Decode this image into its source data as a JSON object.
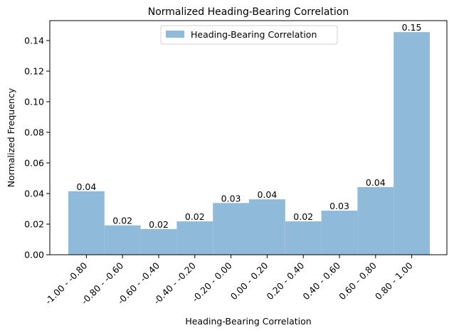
{
  "chart_data": {
    "type": "bar",
    "title": "Normalized Heading-Bearing Correlation",
    "xlabel": "Heading-Bearing Correlation",
    "ylabel": "Normalized Frequency",
    "categories": [
      "-1.00 - -0.80",
      "-0.80 - -0.60",
      "-0.60 - -0.40",
      "-0.40 - -0.20",
      "-0.20 - 0.00",
      "0.00 - 0.20",
      "0.20 - 0.40",
      "0.40 - 0.60",
      "0.60 - 0.80",
      "0.80 - 1.00"
    ],
    "series": [
      {
        "name": "Heading-Bearing Correlation",
        "values": [
          0.0415,
          0.0192,
          0.0168,
          0.0218,
          0.0338,
          0.0362,
          0.0218,
          0.0288,
          0.0442,
          0.1455
        ],
        "data_labels": [
          "0.04",
          "0.02",
          "0.02",
          "0.02",
          "0.03",
          "0.04",
          "0.02",
          "0.03",
          "0.04",
          "0.15"
        ],
        "color": "#8fbad9"
      }
    ],
    "ylim": [
      0,
      0.153
    ],
    "yticks": [
      0.0,
      0.02,
      0.04,
      0.06,
      0.08,
      0.1,
      0.12,
      0.14
    ],
    "ytick_labels": [
      "0.00",
      "0.02",
      "0.04",
      "0.06",
      "0.08",
      "0.10",
      "0.12",
      "0.14"
    ],
    "grid": false,
    "legend_position": "top-center"
  }
}
